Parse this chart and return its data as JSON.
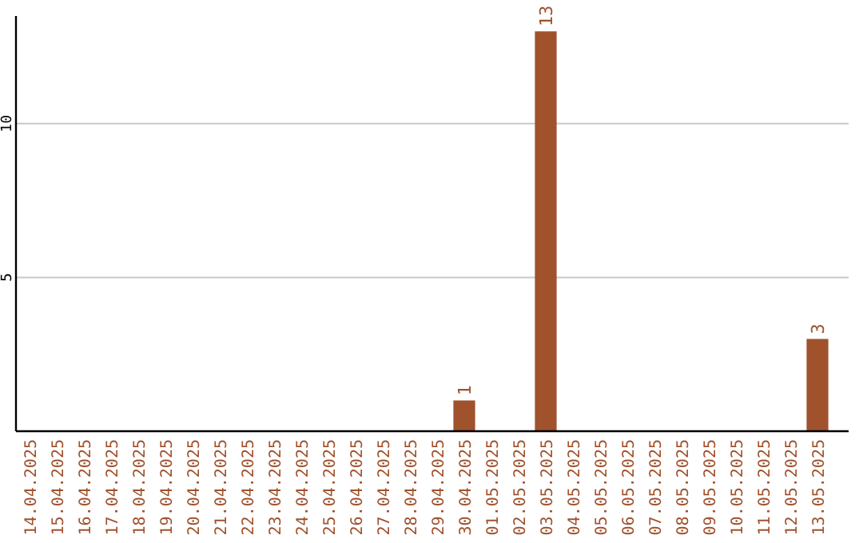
{
  "chart_data": {
    "type": "bar",
    "categories": [
      "14.04.2025",
      "15.04.2025",
      "16.04.2025",
      "17.04.2025",
      "18.04.2025",
      "19.04.2025",
      "20.04.2025",
      "21.04.2025",
      "22.04.2025",
      "23.04.2025",
      "24.04.2025",
      "25.04.2025",
      "26.04.2025",
      "27.04.2025",
      "28.04.2025",
      "29.04.2025",
      "30.04.2025",
      "01.05.2025",
      "02.05.2025",
      "03.05.2025",
      "04.05.2025",
      "05.05.2025",
      "06.05.2025",
      "07.05.2025",
      "08.05.2025",
      "09.05.2025",
      "10.05.2025",
      "11.05.2025",
      "12.05.2025",
      "13.05.2025"
    ],
    "values": [
      0,
      0,
      0,
      0,
      0,
      0,
      0,
      0,
      0,
      0,
      0,
      0,
      0,
      0,
      0,
      0,
      1,
      0,
      0,
      13,
      0,
      0,
      0,
      0,
      0,
      0,
      0,
      0,
      0,
      3
    ],
    "value_labels": [
      null,
      null,
      null,
      null,
      null,
      null,
      null,
      null,
      null,
      null,
      null,
      null,
      null,
      null,
      null,
      null,
      "1",
      null,
      null,
      "13",
      null,
      null,
      null,
      null,
      null,
      null,
      null,
      null,
      null,
      "3"
    ],
    "color": "#a0522d",
    "ylim": [
      0,
      13.5
    ],
    "yticks": [
      5,
      10
    ],
    "grid": "y"
  }
}
